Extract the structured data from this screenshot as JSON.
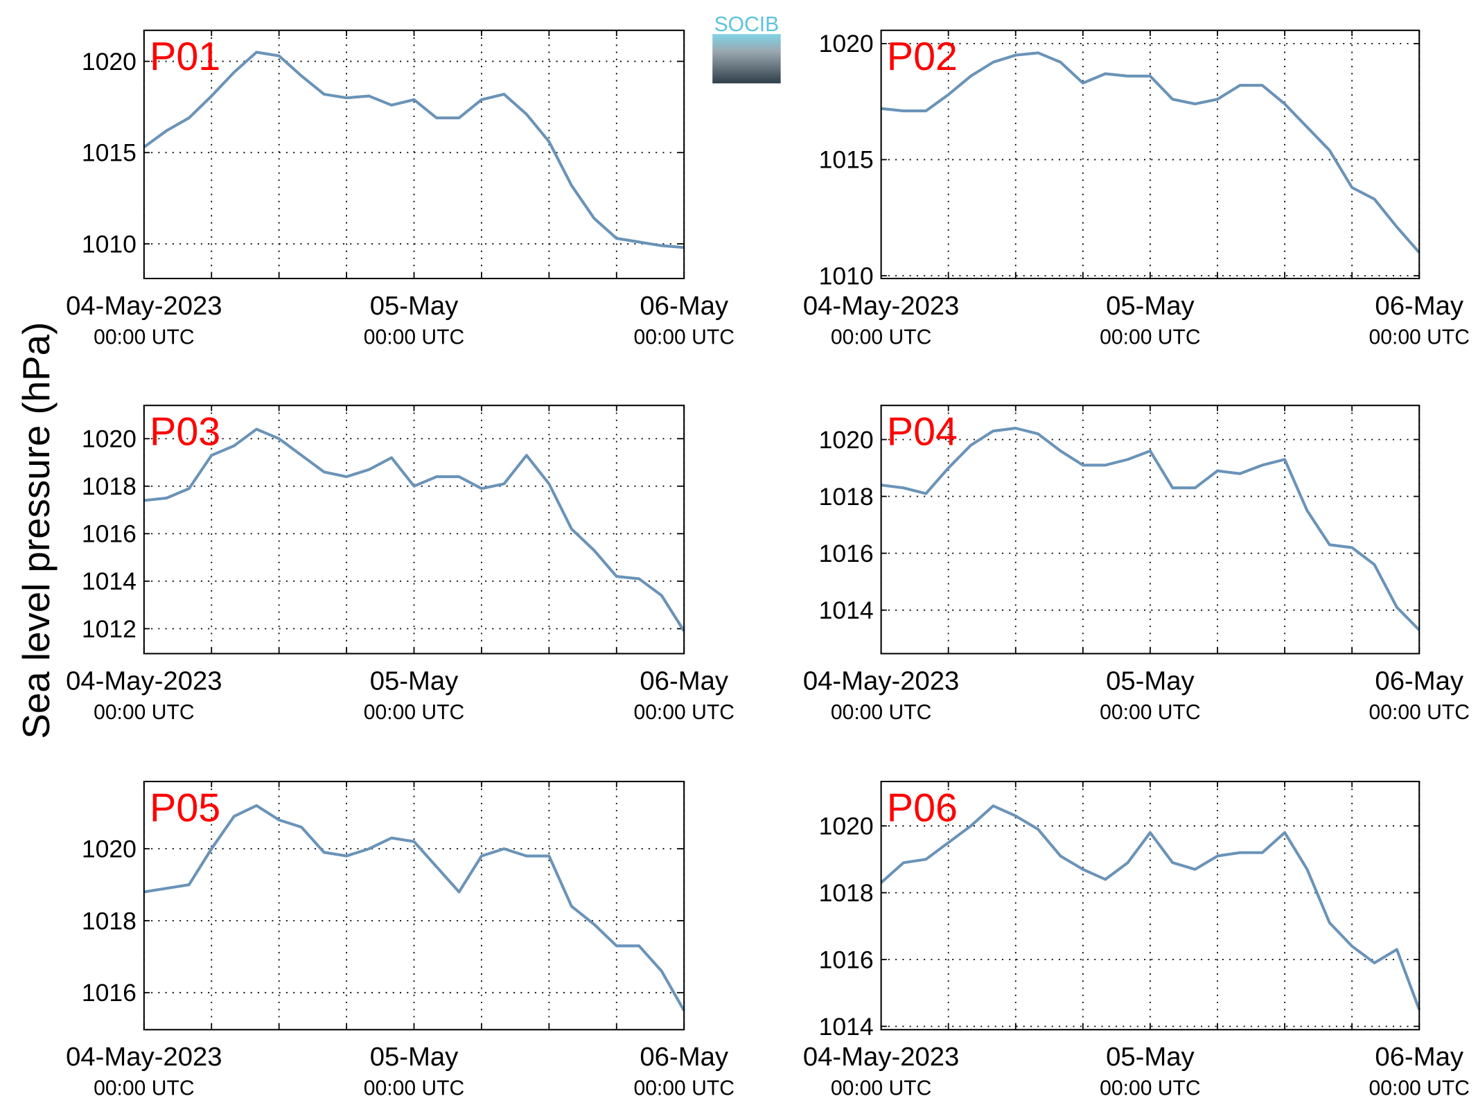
{
  "figure": {
    "ylabel": "Sea level pressure (hPa)",
    "logo": "SOCIB"
  },
  "chart_data": [
    {
      "type": "line",
      "title": "P01",
      "color": "#6a93b8",
      "grid": true,
      "x": [
        0,
        2,
        4,
        6,
        8,
        10,
        12,
        14,
        16,
        18,
        20,
        22,
        24,
        26,
        28,
        30,
        32,
        34,
        36,
        38,
        40,
        42,
        44,
        46,
        48
      ],
      "values": [
        1015.3,
        1016.2,
        1016.9,
        1018.1,
        1019.4,
        1020.5,
        1020.3,
        1019.2,
        1018.2,
        1018.0,
        1018.1,
        1017.6,
        1017.9,
        1016.9,
        1016.9,
        1017.9,
        1018.2,
        1017.1,
        1015.6,
        1013.2,
        1011.4,
        1010.3,
        1010.1,
        1009.9,
        1009.8
      ],
      "xlim": [
        0,
        48
      ],
      "xticks": [
        {
          "value": 0,
          "label": "04-May-2023",
          "sublabel": "00:00 UTC"
        },
        {
          "value": 24,
          "label": "05-May",
          "sublabel": "00:00 UTC"
        },
        {
          "value": 48,
          "label": "06-May",
          "sublabel": "00:00 UTC"
        }
      ],
      "xminorticks": [
        6,
        12,
        18,
        30,
        36,
        42
      ],
      "ylim": [
        1008.1,
        1021.7
      ],
      "yticks": [
        1010,
        1015,
        1020
      ]
    },
    {
      "type": "line",
      "title": "P02",
      "color": "#6a93b8",
      "grid": true,
      "x": [
        0,
        2,
        4,
        6,
        8,
        10,
        12,
        14,
        16,
        18,
        20,
        22,
        24,
        26,
        28,
        30,
        32,
        34,
        36,
        38,
        40,
        42,
        44,
        46,
        48
      ],
      "values": [
        1017.2,
        1017.1,
        1017.1,
        1017.8,
        1018.6,
        1019.2,
        1019.5,
        1019.6,
        1019.2,
        1018.3,
        1018.7,
        1018.6,
        1018.6,
        1017.6,
        1017.4,
        1017.6,
        1018.2,
        1018.2,
        1017.4,
        1016.4,
        1015.4,
        1013.8,
        1013.3,
        1012.1,
        1011.0
      ],
      "xlim": [
        0,
        48
      ],
      "xticks": [
        {
          "value": 0,
          "label": "04-May-2023",
          "sublabel": "00:00 UTC"
        },
        {
          "value": 24,
          "label": "05-May",
          "sublabel": "00:00 UTC"
        },
        {
          "value": 48,
          "label": "06-May",
          "sublabel": "00:00 UTC"
        }
      ],
      "xminorticks": [
        6,
        12,
        18,
        30,
        36,
        42
      ],
      "ylim": [
        1009.88,
        1020.57
      ],
      "yticks": [
        1010,
        1015,
        1020
      ]
    },
    {
      "type": "line",
      "title": "P03",
      "color": "#6a93b8",
      "grid": true,
      "x": [
        0,
        2,
        4,
        6,
        8,
        10,
        12,
        14,
        16,
        18,
        20,
        22,
        24,
        26,
        28,
        30,
        32,
        34,
        36,
        38,
        40,
        42,
        44,
        46,
        48
      ],
      "values": [
        1017.4,
        1017.5,
        1017.9,
        1019.3,
        1019.7,
        1020.4,
        1020.0,
        1019.3,
        1018.6,
        1018.4,
        1018.7,
        1019.2,
        1018.0,
        1018.4,
        1018.4,
        1017.9,
        1018.1,
        1019.3,
        1018.1,
        1016.2,
        1015.3,
        1014.2,
        1014.1,
        1013.4,
        1011.9
      ],
      "xlim": [
        0,
        48
      ],
      "xticks": [
        {
          "value": 0,
          "label": "04-May-2023",
          "sublabel": "00:00 UTC"
        },
        {
          "value": 24,
          "label": "05-May",
          "sublabel": "00:00 UTC"
        },
        {
          "value": 48,
          "label": "06-May",
          "sublabel": "00:00 UTC"
        }
      ],
      "xminorticks": [
        6,
        12,
        18,
        30,
        36,
        42
      ],
      "ylim": [
        1010.95,
        1021.4
      ],
      "yticks": [
        1012,
        1014,
        1016,
        1018,
        1020
      ]
    },
    {
      "type": "line",
      "title": "P04",
      "color": "#6a93b8",
      "grid": true,
      "x": [
        0,
        2,
        4,
        6,
        8,
        10,
        12,
        14,
        16,
        18,
        20,
        22,
        24,
        26,
        28,
        30,
        32,
        34,
        36,
        38,
        40,
        42,
        44,
        46,
        48
      ],
      "values": [
        1018.4,
        1018.3,
        1018.1,
        1019.0,
        1019.8,
        1020.3,
        1020.4,
        1020.2,
        1019.6,
        1019.1,
        1019.1,
        1019.3,
        1019.6,
        1018.3,
        1018.3,
        1018.9,
        1018.8,
        1019.1,
        1019.3,
        1017.5,
        1016.3,
        1016.2,
        1015.6,
        1014.1,
        1013.3
      ],
      "xlim": [
        0,
        48
      ],
      "xticks": [
        {
          "value": 0,
          "label": "04-May-2023",
          "sublabel": "00:00 UTC"
        },
        {
          "value": 24,
          "label": "05-May",
          "sublabel": "00:00 UTC"
        },
        {
          "value": 48,
          "label": "06-May",
          "sublabel": "00:00 UTC"
        }
      ],
      "xminorticks": [
        6,
        12,
        18,
        30,
        36,
        42
      ],
      "ylim": [
        1012.47,
        1021.2
      ],
      "yticks": [
        1014,
        1016,
        1018,
        1020
      ]
    },
    {
      "type": "line",
      "title": "P05",
      "color": "#6a93b8",
      "grid": true,
      "x": [
        0,
        2,
        4,
        6,
        8,
        10,
        12,
        14,
        16,
        18,
        20,
        22,
        24,
        26,
        28,
        30,
        32,
        34,
        36,
        38,
        40,
        42,
        44,
        46,
        48
      ],
      "values": [
        1018.8,
        1018.9,
        1019.0,
        1020.0,
        1020.9,
        1021.2,
        1020.8,
        1020.6,
        1019.9,
        1019.8,
        1020.0,
        1020.3,
        1020.2,
        1019.5,
        1018.8,
        1019.8,
        1020.0,
        1019.8,
        1019.8,
        1018.4,
        1017.9,
        1017.3,
        1017.3,
        1016.6,
        1015.5
      ],
      "xlim": [
        0,
        48
      ],
      "xticks": [
        {
          "value": 0,
          "label": "04-May-2023",
          "sublabel": "00:00 UTC"
        },
        {
          "value": 24,
          "label": "05-May",
          "sublabel": "00:00 UTC"
        },
        {
          "value": 48,
          "label": "06-May",
          "sublabel": "00:00 UTC"
        }
      ],
      "xminorticks": [
        6,
        12,
        18,
        30,
        36,
        42
      ],
      "ylim": [
        1014.97,
        1021.87
      ],
      "yticks": [
        1016,
        1018,
        1020
      ]
    },
    {
      "type": "line",
      "title": "P06",
      "color": "#6a93b8",
      "grid": true,
      "x": [
        0,
        2,
        4,
        6,
        8,
        10,
        12,
        14,
        16,
        18,
        20,
        22,
        24,
        26,
        28,
        30,
        32,
        34,
        36,
        38,
        40,
        42,
        44,
        46,
        48
      ],
      "values": [
        1018.3,
        1018.9,
        1019.0,
        1019.5,
        1020.0,
        1020.6,
        1020.3,
        1019.9,
        1019.1,
        1018.7,
        1018.4,
        1018.9,
        1019.8,
        1018.9,
        1018.7,
        1019.1,
        1019.2,
        1019.2,
        1019.8,
        1018.7,
        1017.1,
        1016.4,
        1015.9,
        1016.3,
        1014.5
      ],
      "xlim": [
        0,
        48
      ],
      "xticks": [
        {
          "value": 0,
          "label": "04-May-2023",
          "sublabel": "00:00 UTC"
        },
        {
          "value": 24,
          "label": "05-May",
          "sublabel": "00:00 UTC"
        },
        {
          "value": 48,
          "label": "06-May",
          "sublabel": "00:00 UTC"
        }
      ],
      "xminorticks": [
        6,
        12,
        18,
        30,
        36,
        42
      ],
      "ylim": [
        1013.9,
        1021.33
      ],
      "yticks": [
        1014,
        1016,
        1018,
        1020
      ]
    }
  ]
}
